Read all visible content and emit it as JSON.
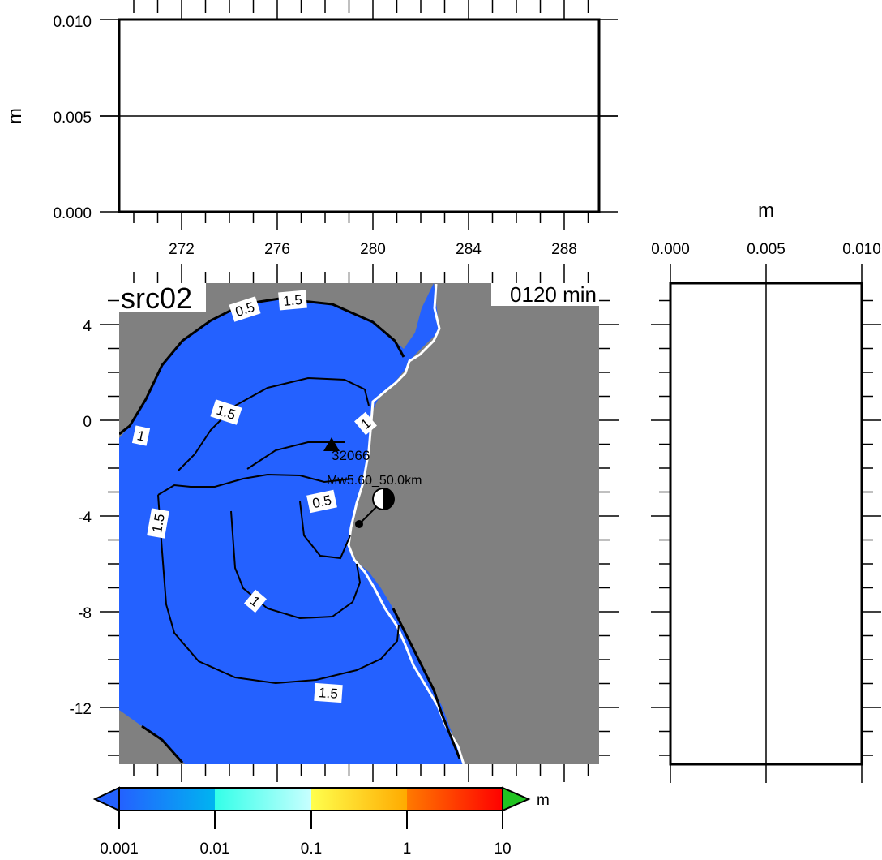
{
  "top_panel": {
    "y_unit": "m",
    "y_ticks": [
      "0.010",
      "0.005",
      "0.000"
    ],
    "x_ticks": [
      "272",
      "276",
      "280",
      "284",
      "288"
    ]
  },
  "right_panel": {
    "x_unit": "m",
    "x_ticks": [
      "0.000",
      "0.005",
      "0.010"
    ]
  },
  "map": {
    "source_label": "src02",
    "time_label": "0120 min",
    "y_ticks": [
      "4",
      "0",
      "-4",
      "-8",
      "-12"
    ],
    "station_label": "32066",
    "event_label": "Mw5.60_50.0km",
    "contour_labels": [
      "0.5",
      "1.5",
      "1.5",
      "1",
      "1",
      "1.5",
      "0.5",
      "1",
      "1.5"
    ],
    "colors": {
      "ocean": "#2461ff",
      "land": "#808080",
      "coast": "#ffffff"
    }
  },
  "colorbar": {
    "unit": "m",
    "tick_labels": [
      "0.001",
      "0.01",
      "0.1",
      "1",
      "10"
    ],
    "colors": [
      "#2461ff",
      "#00c8ff",
      "#ffff4d",
      "#ff7a00",
      "#ff0000",
      "#21c321"
    ]
  }
}
